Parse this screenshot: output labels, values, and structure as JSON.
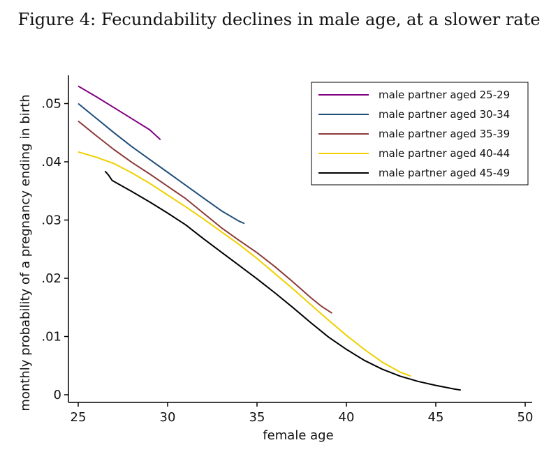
{
  "chart_data": {
    "type": "line",
    "title": "Figure 4: Fecundability declines in male age, at a slower rate",
    "xlabel": "female age",
    "ylabel": "monthly probability of a pregnancy ending in birth",
    "xlim": [
      25,
      50
    ],
    "ylim": [
      0,
      0.055
    ],
    "x_ticks": [
      {
        "value": 25,
        "label": "25"
      },
      {
        "value": 30,
        "label": "30"
      },
      {
        "value": 35,
        "label": "35"
      },
      {
        "value": 40,
        "label": "40"
      },
      {
        "value": 45,
        "label": "45"
      },
      {
        "value": 50,
        "label": "50"
      }
    ],
    "y_ticks": [
      {
        "value": 0,
        "label": "0"
      },
      {
        "value": 0.01,
        "label": ".01"
      },
      {
        "value": 0.02,
        "label": ".02"
      },
      {
        "value": 0.03,
        "label": ".03"
      },
      {
        "value": 0.04,
        "label": ".04"
      },
      {
        "value": 0.05,
        "label": ".05"
      }
    ],
    "legend_position": "top-right",
    "series": [
      {
        "name": "male partner aged 25-29",
        "color": "#800080",
        "points": [
          [
            25,
            0.053
          ],
          [
            26,
            0.0512
          ],
          [
            27,
            0.0493
          ],
          [
            28,
            0.0474
          ],
          [
            29,
            0.0455
          ],
          [
            29.6,
            0.0438
          ]
        ]
      },
      {
        "name": "male partner aged 30-34",
        "color": "#1f4e79",
        "points": [
          [
            25,
            0.05
          ],
          [
            26,
            0.0475
          ],
          [
            27,
            0.045
          ],
          [
            28,
            0.0426
          ],
          [
            29,
            0.0404
          ],
          [
            30,
            0.0382
          ],
          [
            31,
            0.036
          ],
          [
            32,
            0.0338
          ],
          [
            33,
            0.0316
          ],
          [
            34,
            0.0298
          ],
          [
            34.3,
            0.0294
          ]
        ]
      },
      {
        "name": "male partner aged 35-39",
        "color": "#8b3a3a",
        "points": [
          [
            25,
            0.047
          ],
          [
            26,
            0.0445
          ],
          [
            27,
            0.0421
          ],
          [
            28,
            0.0399
          ],
          [
            29,
            0.0379
          ],
          [
            30,
            0.0358
          ],
          [
            31,
            0.0337
          ],
          [
            32,
            0.0312
          ],
          [
            33,
            0.0287
          ],
          [
            34,
            0.0265
          ],
          [
            35,
            0.0244
          ],
          [
            36,
            0.022
          ],
          [
            37,
            0.0194
          ],
          [
            38,
            0.0167
          ],
          [
            38.6,
            0.0152
          ],
          [
            39.2,
            0.014
          ]
        ]
      },
      {
        "name": "male partner aged 40-44",
        "color": "#f0d000",
        "points": [
          [
            25,
            0.0417
          ],
          [
            26,
            0.0408
          ],
          [
            27,
            0.0397
          ],
          [
            28,
            0.0381
          ],
          [
            29,
            0.0363
          ],
          [
            30,
            0.0343
          ],
          [
            31,
            0.0323
          ],
          [
            32,
            0.0302
          ],
          [
            33,
            0.028
          ],
          [
            34,
            0.0258
          ],
          [
            35,
            0.0234
          ],
          [
            36,
            0.0208
          ],
          [
            37,
            0.0182
          ],
          [
            38,
            0.0155
          ],
          [
            39,
            0.0128
          ],
          [
            40,
            0.0102
          ],
          [
            41,
            0.0078
          ],
          [
            42,
            0.0056
          ],
          [
            43,
            0.0039
          ],
          [
            43.6,
            0.0032
          ]
        ]
      },
      {
        "name": "male partner aged 45-49",
        "color": "#000000",
        "points": [
          [
            26.5,
            0.0384
          ],
          [
            26.7,
            0.0377
          ],
          [
            26.9,
            0.0368
          ],
          [
            28,
            0.0349
          ],
          [
            29,
            0.0331
          ],
          [
            30,
            0.0312
          ],
          [
            31,
            0.0292
          ],
          [
            32,
            0.0268
          ],
          [
            33,
            0.0245
          ],
          [
            34,
            0.0222
          ],
          [
            35,
            0.0199
          ],
          [
            36,
            0.0175
          ],
          [
            37,
            0.015
          ],
          [
            38,
            0.0124
          ],
          [
            39,
            0.0099
          ],
          [
            40,
            0.0078
          ],
          [
            41,
            0.0059
          ],
          [
            42,
            0.0044
          ],
          [
            43,
            0.0032
          ],
          [
            44,
            0.0023
          ],
          [
            45,
            0.0016
          ],
          [
            46,
            0.001
          ],
          [
            46.4,
            0.0008
          ]
        ]
      }
    ]
  }
}
